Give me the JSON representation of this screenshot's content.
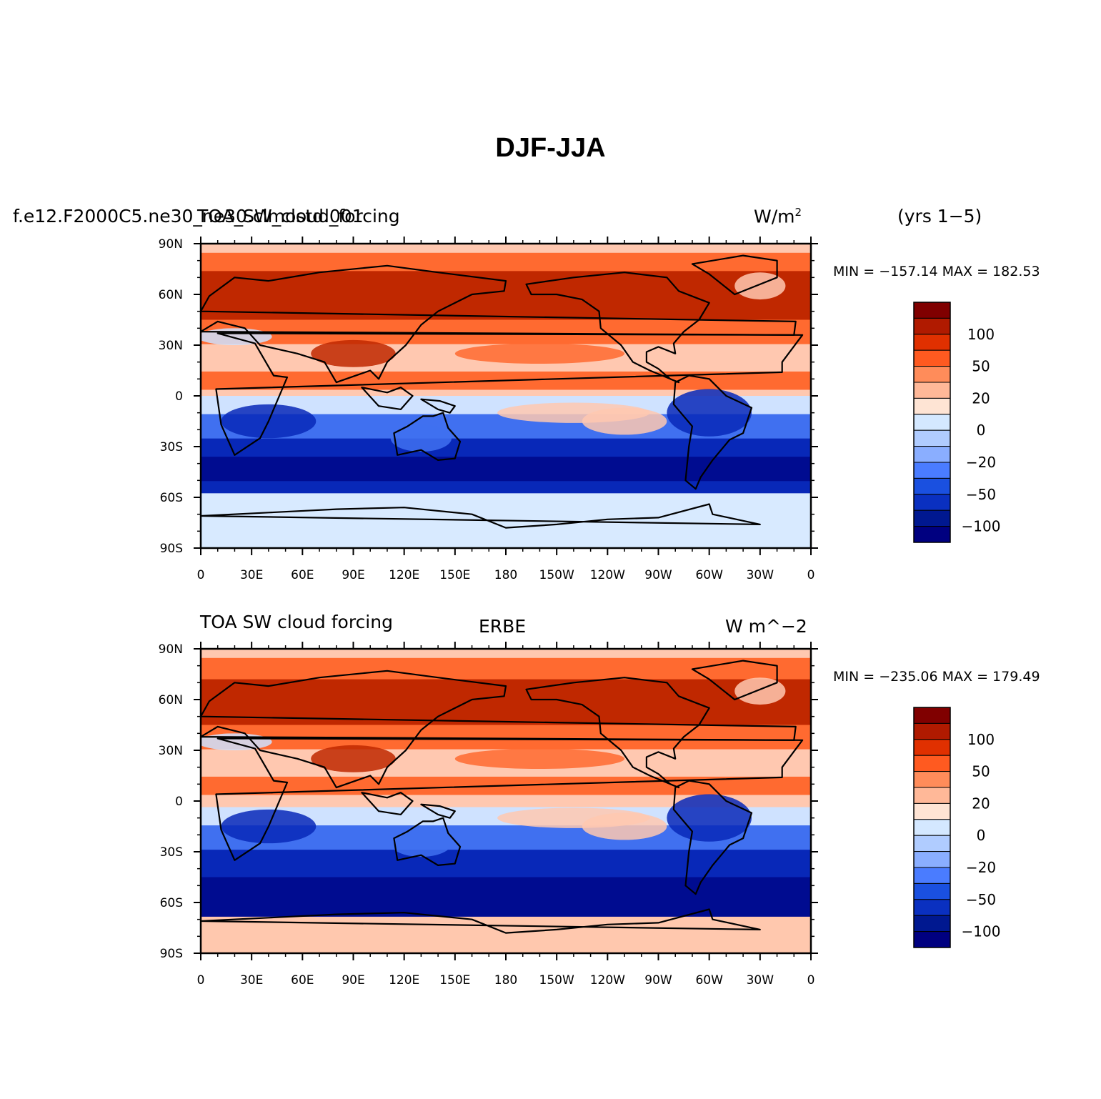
{
  "title": "DJF-JJA",
  "panels": [
    {
      "left_string_1": "f.e12.F2000C5.ne30_ne30.clmostd.001",
      "left_string_2": "TOA_SW_cloud_forcing",
      "center_string": "",
      "right_string": "W/m",
      "right_string_sup": "2",
      "years": "(yrs 1−5)",
      "min_max": "MIN = −157.14 MAX = 182.53"
    },
    {
      "left_string_1": "TOA SW cloud forcing",
      "left_string_2": "",
      "center_string": "ERBE",
      "right_string": "W m^−2",
      "right_string_sup": "",
      "years": "",
      "min_max": "MIN = −235.06 MAX = 179.49"
    }
  ],
  "lat_labels": [
    "90N",
    "60N",
    "30N",
    "0",
    "30S",
    "60S",
    "90S"
  ],
  "lon_labels": [
    "0",
    "30E",
    "60E",
    "90E",
    "120E",
    "150E",
    "180",
    "150W",
    "120W",
    "90W",
    "60W",
    "30W",
    "0"
  ],
  "colorbar": {
    "labels": [
      "100",
      "50",
      "20",
      "0",
      "−20",
      "−50",
      "−100"
    ],
    "colors": [
      "#800000",
      "#b01a00",
      "#e03000",
      "#ff5a20",
      "#ff8c5a",
      "#ffb898",
      "#fee4d4",
      "#d4e8ff",
      "#b0ccff",
      "#8aaeff",
      "#4a7cff",
      "#1a50e0",
      "#0a30c0",
      "#001890",
      "#000080"
    ]
  },
  "colors": {
    "warm_strong": "#c02800",
    "warm": "#ff6a30",
    "warm_light": "#ffc8b0",
    "cool_light": "#cfe2ff",
    "cool": "#4070f0",
    "cool_strong": "#0828b8",
    "cool_deep": "#000c90",
    "antarctic_top": "#d8eaff",
    "antarctic_bottom": "#ffc8ae"
  }
}
